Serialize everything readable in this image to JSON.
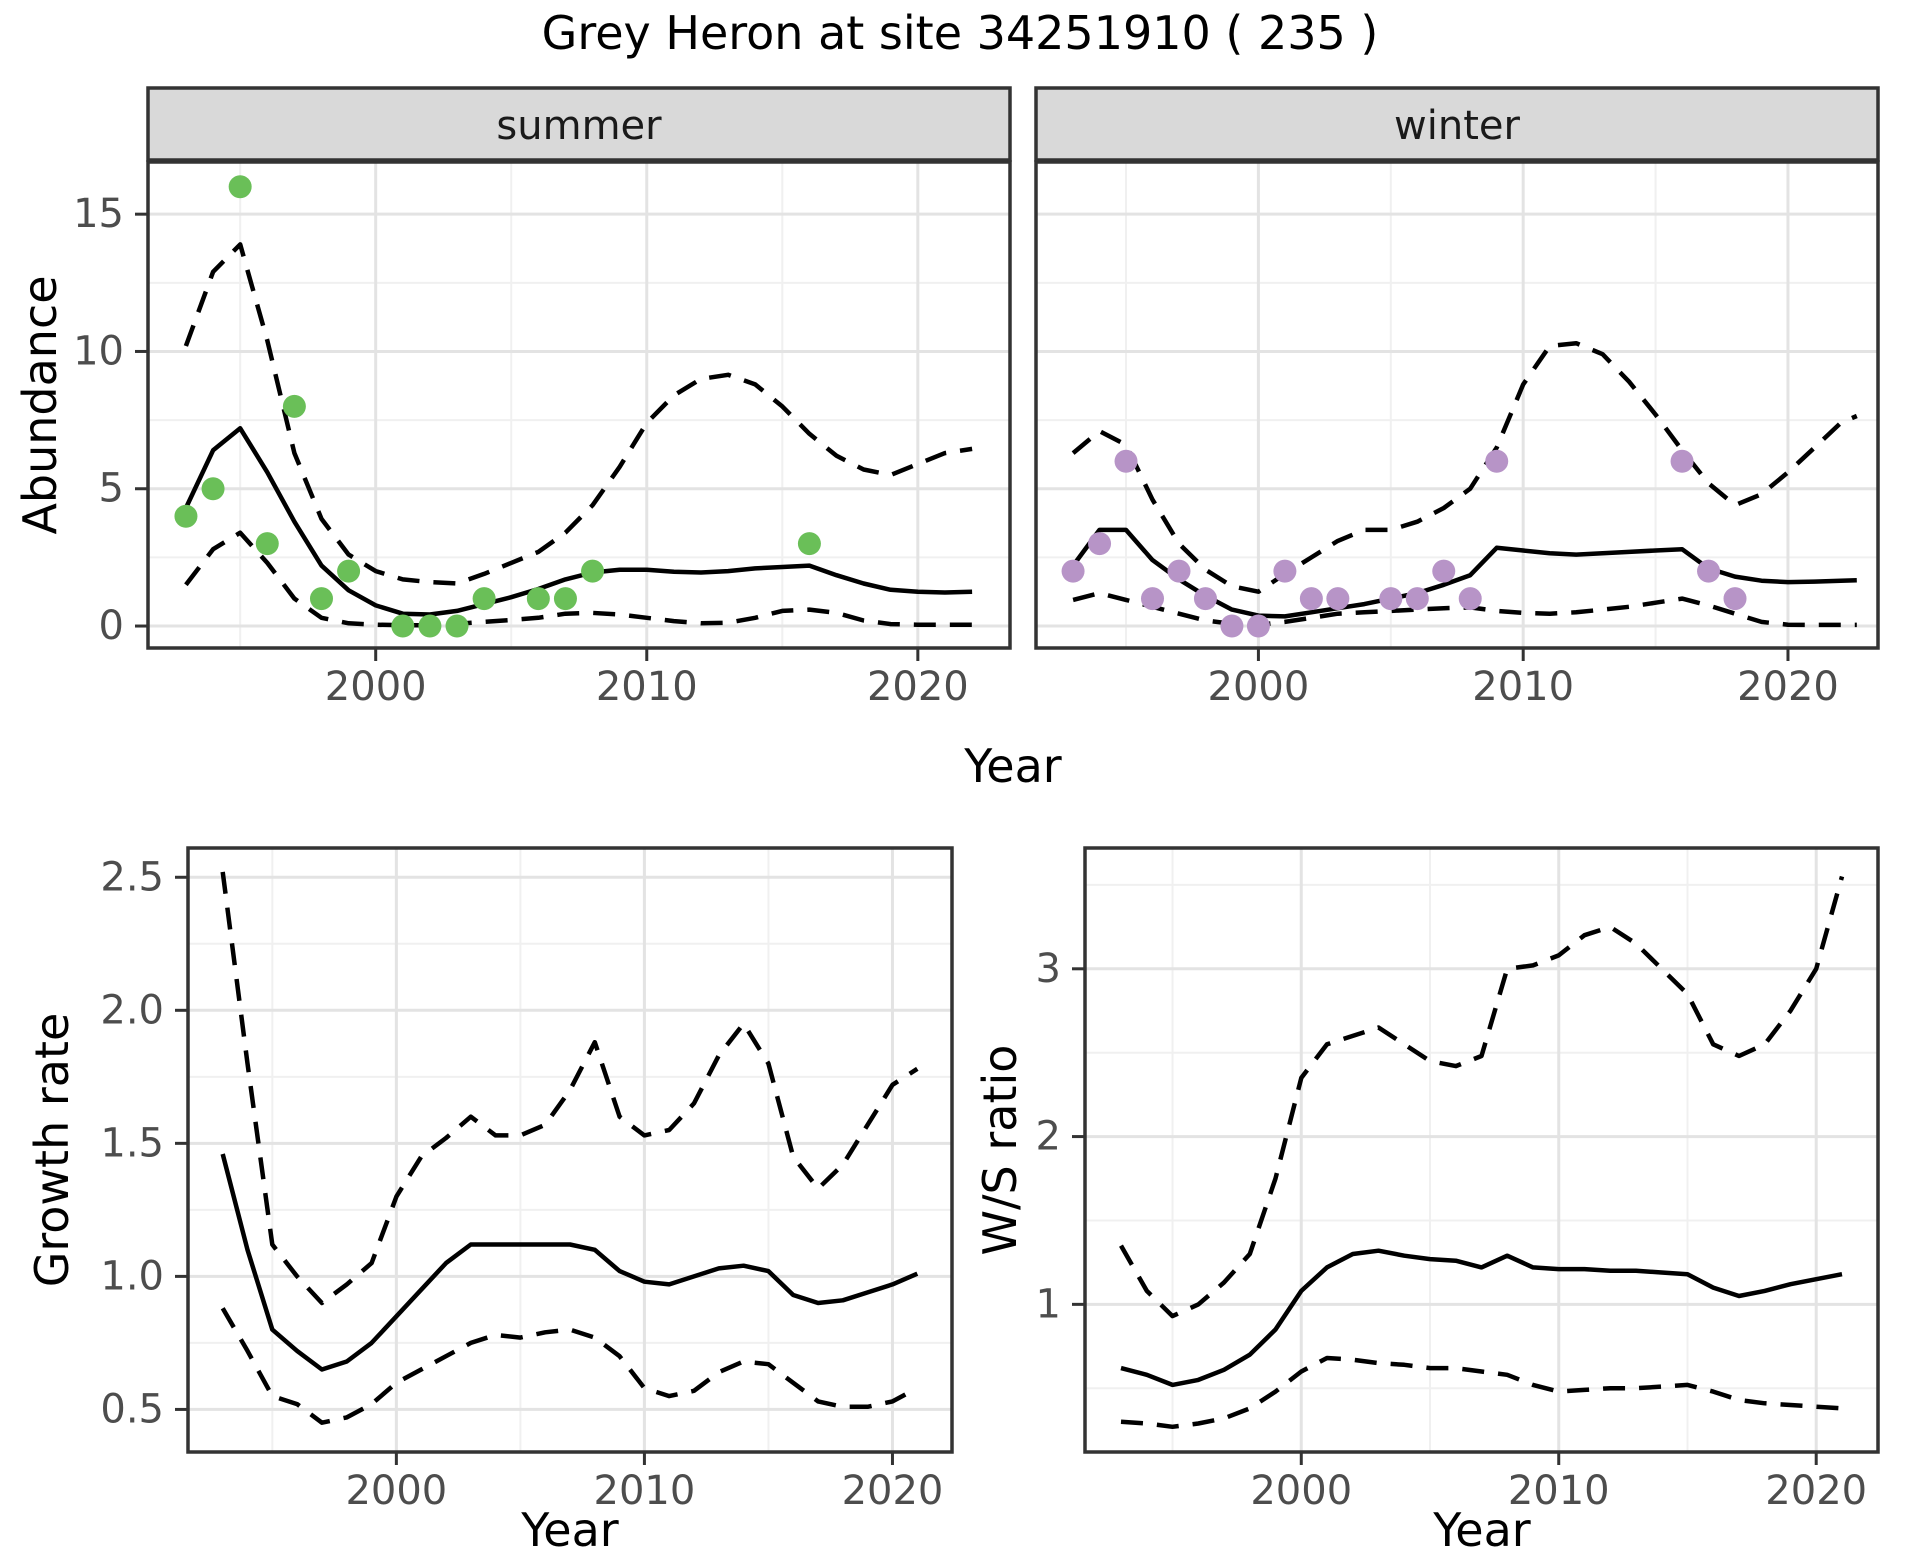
{
  "title": "Grey Heron at site 34251910 ( 235 )",
  "axis_titles": {
    "abundance": "Abundance",
    "year_top": "Year",
    "growth": "Growth rate",
    "ws_ratio": "W/S ratio",
    "year_bottom_left": "Year",
    "year_bottom_right": "Year"
  },
  "colors": {
    "summer_points": "#6abf58",
    "winter_points": "#b794c7",
    "line": "#000000",
    "strip_bg": "#d9d9d9",
    "strip_border": "#333333",
    "panel_border": "#333333",
    "grid_major": "#e3e3e3",
    "grid_minor": "#f0f0f0",
    "tick_mark": "#333333",
    "tick_label": "#4d4d4d",
    "strip_text": "#1a1a1a"
  },
  "chart_data": [
    {
      "id": "abundance-summer",
      "type": "line",
      "facet_label": "summer",
      "xlabel": "Year",
      "ylabel": "Abundance",
      "xlim": [
        1991.6,
        2023.4
      ],
      "ylim": [
        -0.8,
        16.9
      ],
      "xticks": [
        2000,
        2010,
        2020
      ],
      "xtick_labels": [
        "2000",
        "2010",
        "2020"
      ],
      "xminor": [
        1995,
        2005,
        2015
      ],
      "yticks": [
        0,
        5,
        10,
        15
      ],
      "ytick_labels": [
        "0",
        "5",
        "10",
        "15"
      ],
      "yminor": [
        2.5,
        7.5,
        12.5
      ],
      "x": [
        1993,
        1994,
        1995,
        1996,
        1997,
        1998,
        1999,
        2000,
        2001,
        2002,
        2003,
        2004,
        2005,
        2006,
        2007,
        2008,
        2009,
        2010,
        2011,
        2012,
        2013,
        2014,
        2015,
        2016,
        2017,
        2018,
        2019,
        2020,
        2021,
        2022
      ],
      "series": [
        {
          "name": "upper_ci",
          "style": "dashed",
          "values": [
            10.2,
            12.9,
            13.9,
            10.4,
            6.3,
            3.9,
            2.6,
            2.0,
            1.7,
            1.6,
            1.55,
            1.9,
            2.3,
            2.7,
            3.4,
            4.4,
            5.8,
            7.4,
            8.4,
            9.0,
            9.15,
            8.8,
            8.0,
            7.0,
            6.2,
            5.7,
            5.5,
            5.9,
            6.3,
            6.45
          ]
        },
        {
          "name": "lower_ci",
          "style": "dashed",
          "values": [
            1.5,
            2.8,
            3.4,
            2.3,
            1.0,
            0.3,
            0.1,
            0.05,
            0.03,
            0.03,
            0.08,
            0.15,
            0.22,
            0.3,
            0.45,
            0.48,
            0.42,
            0.3,
            0.18,
            0.1,
            0.12,
            0.3,
            0.55,
            0.6,
            0.48,
            0.2,
            0.07,
            0.05,
            0.05,
            0.05
          ]
        },
        {
          "name": "fit",
          "style": "solid",
          "values": [
            4.3,
            6.4,
            7.2,
            5.6,
            3.8,
            2.2,
            1.3,
            0.75,
            0.45,
            0.42,
            0.55,
            0.8,
            1.05,
            1.35,
            1.7,
            1.95,
            2.05,
            2.05,
            1.98,
            1.95,
            2.0,
            2.1,
            2.15,
            2.2,
            1.85,
            1.55,
            1.32,
            1.25,
            1.22,
            1.25
          ]
        }
      ],
      "points": {
        "name": "summer-observations",
        "color_key": "summer_points",
        "x": [
          1993,
          1994,
          1995,
          1996,
          1997,
          1998,
          1999,
          2001,
          2002,
          2003,
          2004,
          2006,
          2007,
          2008,
          2016
        ],
        "y": [
          4,
          5,
          16,
          3,
          8,
          1,
          2,
          0,
          0,
          0,
          1,
          1,
          1,
          2,
          3
        ]
      }
    },
    {
      "id": "abundance-winter",
      "type": "line",
      "facet_label": "winter",
      "xlabel": "Year",
      "ylabel": "Abundance",
      "xlim": [
        1991.6,
        2023.4
      ],
      "ylim": [
        -0.8,
        16.9
      ],
      "xticks": [
        2000,
        2010,
        2020
      ],
      "xtick_labels": [
        "2000",
        "2010",
        "2020"
      ],
      "xminor": [
        1995,
        2005,
        2015
      ],
      "yticks": [
        0,
        5,
        10,
        15
      ],
      "ytick_labels": [
        "0",
        "5",
        "10",
        "15"
      ],
      "yminor": [
        2.5,
        7.5,
        12.5
      ],
      "x": [
        1993,
        1994,
        1995,
        1996,
        1997,
        1998,
        1999,
        2000,
        2001,
        2002,
        2003,
        2004,
        2005,
        2006,
        2007,
        2008,
        2009,
        2010,
        2011,
        2012,
        2013,
        2014,
        2015,
        2016,
        2017,
        2018,
        2019,
        2020,
        2021,
        2022,
        2022.6
      ],
      "series": [
        {
          "name": "upper_ci",
          "style": "dashed",
          "values": [
            6.3,
            7.1,
            6.6,
            4.6,
            3.0,
            2.05,
            1.45,
            1.25,
            1.9,
            2.5,
            3.1,
            3.5,
            3.5,
            3.8,
            4.3,
            5.0,
            6.5,
            8.8,
            10.2,
            10.3,
            9.9,
            8.9,
            7.7,
            6.4,
            5.2,
            4.4,
            4.8,
            5.6,
            6.5,
            7.4,
            7.65
          ]
        },
        {
          "name": "lower_ci",
          "style": "dashed",
          "values": [
            0.95,
            1.2,
            0.95,
            0.7,
            0.45,
            0.2,
            0.08,
            0.04,
            0.15,
            0.3,
            0.45,
            0.5,
            0.55,
            0.6,
            0.65,
            0.68,
            0.55,
            0.48,
            0.45,
            0.5,
            0.6,
            0.7,
            0.85,
            1.0,
            0.75,
            0.45,
            0.15,
            0.05,
            0.04,
            0.04,
            0.04
          ]
        },
        {
          "name": "fit",
          "style": "solid",
          "values": [
            2.2,
            3.5,
            3.5,
            2.4,
            1.7,
            1.1,
            0.6,
            0.38,
            0.35,
            0.5,
            0.65,
            0.8,
            1.0,
            1.2,
            1.5,
            1.85,
            2.85,
            2.75,
            2.65,
            2.6,
            2.65,
            2.7,
            2.75,
            2.8,
            2.1,
            1.8,
            1.65,
            1.6,
            1.62,
            1.65,
            1.67
          ]
        }
      ],
      "points": {
        "name": "winter-observations",
        "color_key": "winter_points",
        "x": [
          1993,
          1994,
          1995,
          1996,
          1997,
          1998,
          1999,
          2000,
          2001,
          2002,
          2003,
          2005,
          2006,
          2007,
          2008,
          2009,
          2016,
          2017,
          2018
        ],
        "y": [
          2,
          3,
          6,
          1,
          2,
          1,
          0,
          0,
          2,
          1,
          1,
          1,
          1,
          2,
          1,
          6,
          6,
          2,
          1
        ]
      }
    },
    {
      "id": "growth-rate",
      "type": "line",
      "facet_label": null,
      "xlabel": "Year",
      "ylabel": "Growth rate",
      "xlim": [
        1991.6,
        2022.4
      ],
      "ylim": [
        0.34,
        2.61
      ],
      "xticks": [
        2000,
        2010,
        2020
      ],
      "xtick_labels": [
        "2000",
        "2010",
        "2020"
      ],
      "xminor": [
        1995,
        2005,
        2015
      ],
      "yticks": [
        0.5,
        1.0,
        1.5,
        2.0,
        2.5
      ],
      "ytick_labels": [
        "0.5",
        "1.0",
        "1.5",
        "2.0",
        "2.5"
      ],
      "yminor": [
        0.75,
        1.25,
        1.75,
        2.25
      ],
      "x": [
        1993,
        1994,
        1995,
        1996,
        1997,
        1998,
        1999,
        2000,
        2001,
        2002,
        2003,
        2004,
        2005,
        2006,
        2007,
        2008,
        2009,
        2010,
        2011,
        2012,
        2013,
        2014,
        2015,
        2016,
        2017,
        2018,
        2019,
        2020,
        2021
      ],
      "series": [
        {
          "name": "upper_ci",
          "style": "dashed",
          "values": [
            2.52,
            1.8,
            1.12,
            1.0,
            0.9,
            0.97,
            1.05,
            1.3,
            1.45,
            1.52,
            1.6,
            1.53,
            1.53,
            1.57,
            1.7,
            1.88,
            1.6,
            1.53,
            1.55,
            1.65,
            1.83,
            1.95,
            1.8,
            1.45,
            1.33,
            1.42,
            1.57,
            1.72,
            1.78
          ]
        },
        {
          "name": "lower_ci",
          "style": "dashed",
          "values": [
            0.88,
            0.72,
            0.55,
            0.52,
            0.45,
            0.47,
            0.52,
            0.6,
            0.65,
            0.7,
            0.75,
            0.78,
            0.77,
            0.79,
            0.8,
            0.77,
            0.7,
            0.58,
            0.55,
            0.57,
            0.64,
            0.68,
            0.67,
            0.6,
            0.53,
            0.51,
            0.51,
            0.53,
            0.58
          ]
        },
        {
          "name": "fit",
          "style": "solid",
          "values": [
            1.46,
            1.1,
            0.8,
            0.72,
            0.65,
            0.68,
            0.75,
            0.85,
            0.95,
            1.05,
            1.12,
            1.12,
            1.12,
            1.12,
            1.12,
            1.1,
            1.02,
            0.98,
            0.97,
            1.0,
            1.03,
            1.04,
            1.02,
            0.93,
            0.9,
            0.91,
            0.94,
            0.97,
            1.01
          ]
        }
      ],
      "points": null
    },
    {
      "id": "ws-ratio",
      "type": "line",
      "facet_label": null,
      "xlabel": "Year",
      "ylabel": "W/S ratio",
      "xlim": [
        1991.6,
        2022.4
      ],
      "ylim": [
        0.12,
        3.72
      ],
      "xticks": [
        2000,
        2010,
        2020
      ],
      "xtick_labels": [
        "2000",
        "2010",
        "2020"
      ],
      "xminor": [
        1995,
        2005,
        2015
      ],
      "yticks": [
        1,
        2,
        3
      ],
      "ytick_labels": [
        "1",
        "2",
        "3"
      ],
      "yminor": [
        0.5,
        1.5,
        2.5,
        3.5
      ],
      "x": [
        1993,
        1994,
        1995,
        1996,
        1997,
        1998,
        1999,
        2000,
        2001,
        2002,
        2003,
        2004,
        2005,
        2006,
        2007,
        2008,
        2009,
        2010,
        2011,
        2012,
        2013,
        2014,
        2015,
        2016,
        2017,
        2018,
        2019,
        2020,
        2021
      ],
      "series": [
        {
          "name": "upper_ci",
          "style": "dashed",
          "values": [
            1.35,
            1.08,
            0.93,
            1.0,
            1.13,
            1.3,
            1.75,
            2.35,
            2.55,
            2.6,
            2.65,
            2.55,
            2.45,
            2.42,
            2.48,
            3.0,
            3.02,
            3.08,
            3.2,
            3.25,
            3.15,
            3.0,
            2.85,
            2.55,
            2.48,
            2.55,
            2.75,
            3.0,
            3.55
          ]
        },
        {
          "name": "lower_ci",
          "style": "dashed",
          "values": [
            0.3,
            0.29,
            0.27,
            0.29,
            0.32,
            0.38,
            0.48,
            0.6,
            0.68,
            0.67,
            0.65,
            0.64,
            0.62,
            0.62,
            0.6,
            0.58,
            0.52,
            0.48,
            0.49,
            0.5,
            0.5,
            0.51,
            0.52,
            0.48,
            0.43,
            0.41,
            0.4,
            0.39,
            0.38
          ]
        },
        {
          "name": "fit",
          "style": "solid",
          "values": [
            0.62,
            0.58,
            0.52,
            0.55,
            0.61,
            0.7,
            0.85,
            1.08,
            1.22,
            1.3,
            1.32,
            1.29,
            1.27,
            1.26,
            1.22,
            1.29,
            1.22,
            1.21,
            1.21,
            1.2,
            1.2,
            1.19,
            1.18,
            1.1,
            1.05,
            1.08,
            1.12,
            1.15,
            1.18
          ]
        }
      ],
      "points": null
    }
  ]
}
